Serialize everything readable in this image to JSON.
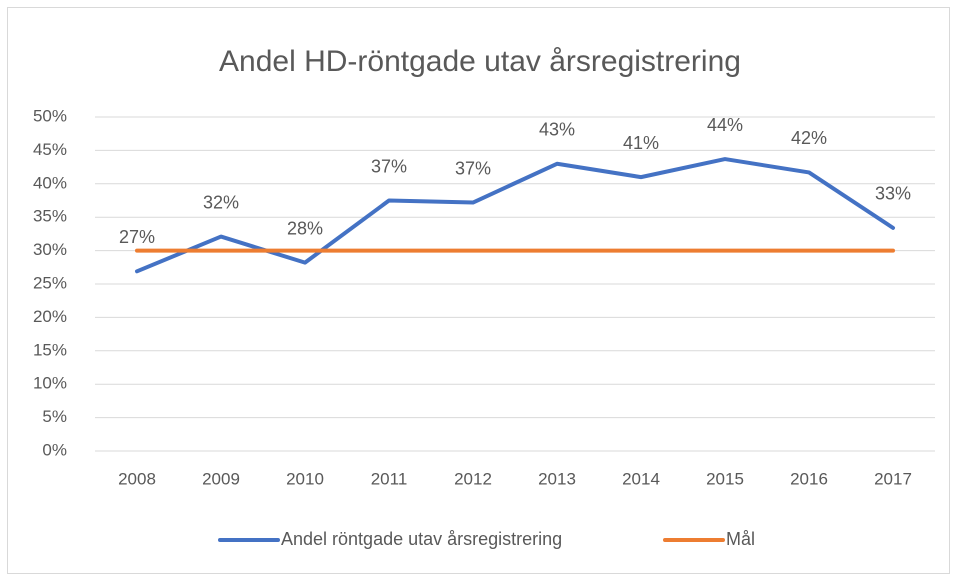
{
  "chart_data": {
    "type": "line",
    "title": "Andel HD-röntgade utav årsregistrering",
    "categories": [
      "2008",
      "2009",
      "2010",
      "2011",
      "2012",
      "2013",
      "2014",
      "2015",
      "2016",
      "2017"
    ],
    "series": [
      {
        "name": "Andel röntgade utav årsregistrering",
        "color": "#4472c4",
        "values": [
          26.9,
          32.1,
          28.2,
          37.5,
          37.2,
          43.0,
          41.0,
          43.7,
          41.7,
          33.4
        ],
        "value_labels": [
          "27%",
          "32%",
          "28%",
          "37%",
          "37%",
          "43%",
          "41%",
          "44%",
          "42%",
          "33%"
        ]
      },
      {
        "name": "Mål",
        "color": "#ed7d31",
        "values": [
          30,
          30,
          30,
          30,
          30,
          30,
          30,
          30,
          30,
          30
        ]
      }
    ],
    "ylim": [
      0,
      50
    ],
    "yticks": [
      {
        "value": 0,
        "label": "0%"
      },
      {
        "value": 5,
        "label": "5%"
      },
      {
        "value": 10,
        "label": "10%"
      },
      {
        "value": 15,
        "label": "15%"
      },
      {
        "value": 20,
        "label": "20%"
      },
      {
        "value": 25,
        "label": "25%"
      },
      {
        "value": 30,
        "label": "30%"
      },
      {
        "value": 35,
        "label": "35%"
      },
      {
        "value": 40,
        "label": "40%"
      },
      {
        "value": 45,
        "label": "45%"
      },
      {
        "value": 50,
        "label": "50%"
      }
    ],
    "grid": true,
    "legend": "bottom"
  }
}
